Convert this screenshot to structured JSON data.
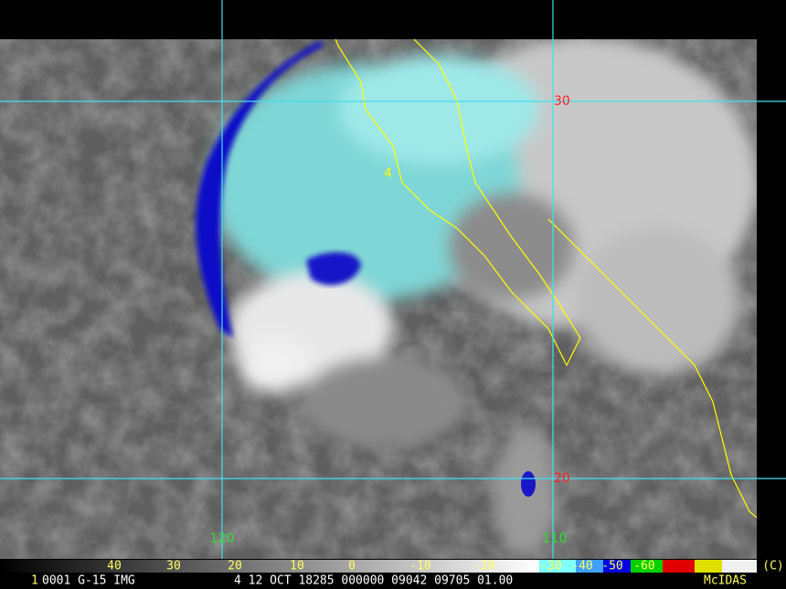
{
  "grid_labels": {
    "lat": [
      "30",
      "20"
    ],
    "lon": [
      "120",
      "110"
    ]
  },
  "storm_label": "4",
  "color_scale": {
    "labels": [
      "40",
      "30",
      "20",
      "10",
      "0",
      "-10",
      "-20",
      "-30",
      "-40",
      "-50",
      "-60"
    ],
    "copyright": "(C)"
  },
  "footer": {
    "frame": "1",
    "info": "0001 G-15 IMG",
    "time": "4 12 OCT 18285 000000 09042 09705 01.00",
    "system": "McIDAS"
  }
}
